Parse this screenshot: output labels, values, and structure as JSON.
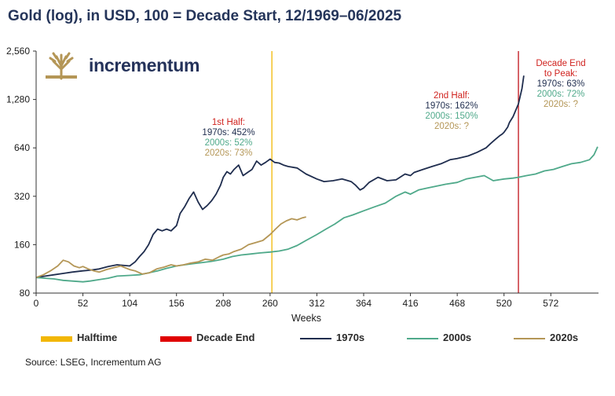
{
  "title": "Gold (log), in USD, 100 = Decade Start, 12/1969–06/2025",
  "logo": {
    "text": "incrementum",
    "icon": "tree-icon",
    "color": "#b49656"
  },
  "chart_data": {
    "type": "line",
    "xlabel": "Weeks",
    "ylabel": "",
    "y_scale": "log",
    "xlim": [
      0,
      625
    ],
    "ylim": [
      80,
      2560
    ],
    "x_ticks": [
      0,
      52,
      104,
      156,
      208,
      260,
      312,
      364,
      416,
      468,
      520,
      572
    ],
    "y_ticks": [
      80,
      160,
      320,
      640,
      1280
    ],
    "y_tick_labels": [
      "80",
      "160",
      "320",
      "640",
      "1,280",
      "2,560"
    ],
    "y_tick_values": [
      80,
      160,
      320,
      640,
      1280,
      2560
    ],
    "vertical_lines": [
      {
        "name": "Halftime",
        "x": 262,
        "color": "#f2b705"
      },
      {
        "name": "Decade End",
        "x": 536,
        "color": "#c0121a"
      }
    ],
    "series": [
      {
        "name": "1970s",
        "color": "#1f2d4e",
        "x": [
          0,
          10,
          20,
          30,
          40,
          52,
          60,
          70,
          80,
          90,
          104,
          110,
          115,
          120,
          125,
          130,
          135,
          140,
          145,
          150,
          156,
          160,
          165,
          170,
          175,
          180,
          185,
          190,
          195,
          200,
          205,
          208,
          212,
          216,
          220,
          225,
          230,
          235,
          240,
          245,
          250,
          255,
          260,
          265,
          270,
          275,
          280,
          290,
          300,
          312,
          320,
          330,
          340,
          350,
          355,
          360,
          364,
          370,
          380,
          390,
          400,
          410,
          416,
          420,
          430,
          440,
          450,
          460,
          468,
          480,
          490,
          500,
          505,
          510,
          515,
          518,
          520,
          522,
          524,
          526,
          530,
          536,
          540,
          542
        ],
        "y": [
          100,
          102,
          104,
          106,
          108,
          110,
          111,
          113,
          117,
          120,
          118,
          125,
          135,
          145,
          160,
          185,
          200,
          195,
          200,
          195,
          210,
          250,
          275,
          310,
          340,
          295,
          265,
          280,
          300,
          330,
          375,
          420,
          455,
          440,
          470,
          500,
          430,
          450,
          470,
          530,
          500,
          520,
          545,
          520,
          515,
          500,
          490,
          480,
          440,
          410,
          395,
          400,
          410,
          395,
          375,
          350,
          360,
          390,
          420,
          400,
          405,
          440,
          430,
          450,
          470,
          490,
          510,
          540,
          550,
          570,
          600,
          640,
          680,
          720,
          760,
          780,
          800,
          830,
          860,
          920,
          1000,
          1200,
          1500,
          1800
        ]
      },
      {
        "name": "2000s",
        "color": "#4fa98a",
        "x": [
          0,
          10,
          20,
          30,
          40,
          52,
          60,
          70,
          80,
          90,
          104,
          115,
          125,
          135,
          145,
          156,
          165,
          175,
          185,
          195,
          208,
          218,
          228,
          238,
          248,
          260,
          270,
          280,
          290,
          300,
          312,
          322,
          332,
          342,
          352,
          364,
          376,
          388,
          400,
          410,
          416,
          425,
          435,
          445,
          455,
          468,
          478,
          488,
          498,
          508,
          520,
          530,
          536,
          545,
          555,
          565,
          575,
          585,
          595,
          605,
          615,
          620,
          624
        ],
        "y": [
          100,
          99,
          98,
          96,
          95,
          94,
          95,
          97,
          99,
          102,
          103,
          104,
          107,
          110,
          114,
          118,
          120,
          122,
          124,
          126,
          130,
          135,
          138,
          140,
          142,
          144,
          146,
          150,
          158,
          170,
          185,
          200,
          215,
          235,
          245,
          260,
          275,
          290,
          320,
          340,
          330,
          350,
          360,
          370,
          380,
          390,
          410,
          420,
          430,
          400,
          410,
          415,
          420,
          430,
          440,
          460,
          470,
          490,
          510,
          520,
          540,
          580,
          650
        ]
      },
      {
        "name": "2020s",
        "color": "#b49656",
        "x": [
          0,
          8,
          16,
          24,
          30,
          36,
          42,
          48,
          52,
          58,
          64,
          70,
          78,
          86,
          94,
          104,
          110,
          118,
          126,
          134,
          142,
          150,
          156,
          164,
          172,
          180,
          188,
          196,
          204,
          208,
          214,
          220,
          228,
          236,
          244,
          252,
          260,
          266,
          272,
          278,
          284,
          290,
          296,
          300
        ],
        "y": [
          100,
          104,
          110,
          118,
          128,
          125,
          118,
          115,
          117,
          113,
          110,
          108,
          112,
          115,
          118,
          112,
          110,
          105,
          107,
          113,
          116,
          120,
          118,
          120,
          123,
          125,
          130,
          128,
          135,
          138,
          140,
          145,
          150,
          160,
          165,
          170,
          185,
          200,
          215,
          225,
          232,
          228,
          235,
          238
        ]
      }
    ]
  },
  "annotations": {
    "first_half": {
      "header": "1st Half:",
      "l70": "1970s: 452%",
      "l00": "2000s: 52%",
      "l20": "2020s: 73%"
    },
    "second_half": {
      "header": "2nd Half:",
      "l70": "1970s: 162%",
      "l00": "2000s: 150%",
      "l20": "2020s: ?"
    },
    "decade_end": {
      "header1": "Decade End",
      "header2": "to Peak:",
      "l70": "1970s: 63%",
      "l00": "2000s: 72%",
      "l20": "2020s: ?"
    }
  },
  "legend": {
    "halftime": "Halftime",
    "decade_end": "Decade End",
    "s1970": "1970s",
    "s2000": "2000s",
    "s2020": "2020s"
  },
  "source": "Source: LSEG, Incrementum AG"
}
